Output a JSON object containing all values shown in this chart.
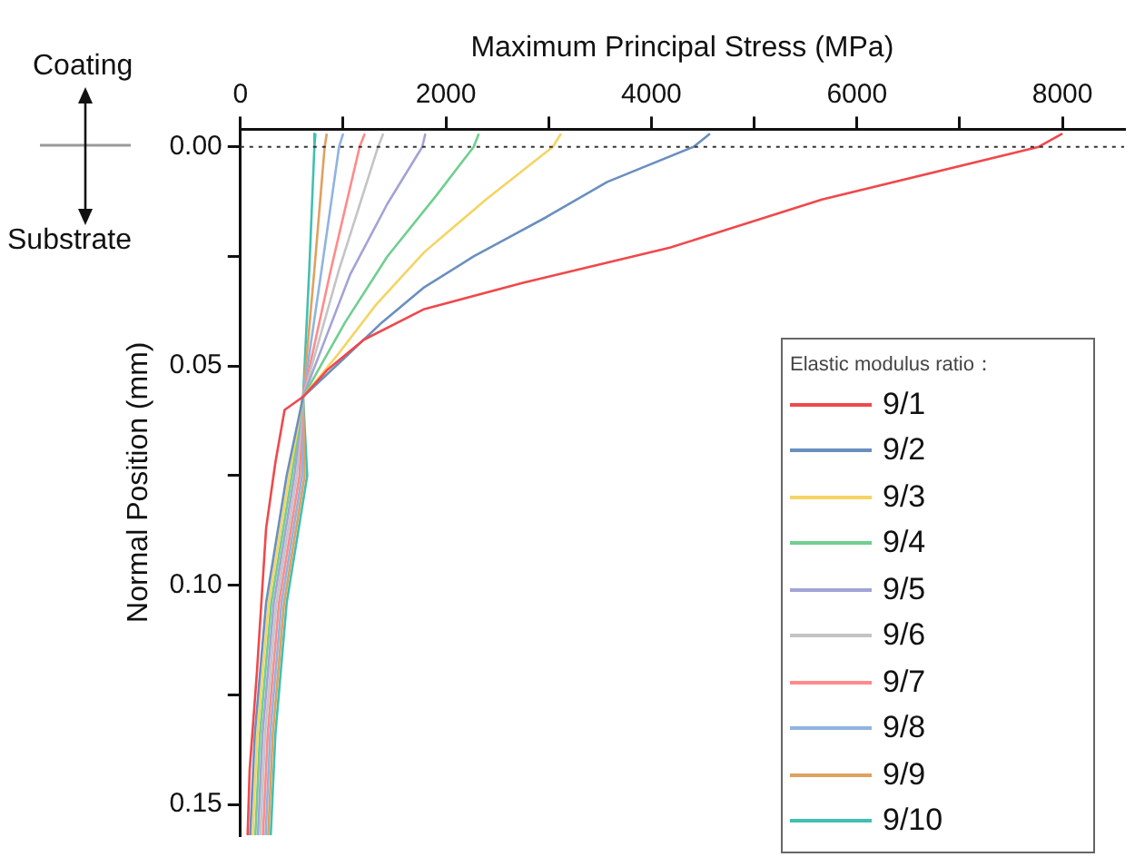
{
  "chart_data": {
    "type": "line",
    "xlabel": "Maximum Principal Stress (MPa)",
    "ylabel": "Normal Position (mm)",
    "legend_title": "Elastic modulus ratio：",
    "annotations": [
      "Coating",
      "Substrate"
    ],
    "xlim": [
      0,
      8600
    ],
    "xticks": [
      0,
      {
        "value": 1000,
        "label": null
      },
      2000,
      {
        "value": 3000,
        "label": null
      },
      4000,
      {
        "value": 5000,
        "label": null
      },
      6000,
      {
        "value": 7000,
        "label": null
      },
      8000
    ],
    "ylim": [
      0.157,
      -0.004
    ],
    "yticks": [
      {
        "value": 0,
        "label": "0.00"
      },
      {
        "value": 0.025,
        "label": null
      },
      {
        "value": 0.05,
        "label": "0.05"
      },
      {
        "value": 0.075,
        "label": null
      },
      {
        "value": 0.1,
        "label": "0.10"
      },
      {
        "value": 0.125,
        "label": null
      },
      {
        "value": 0.15,
        "label": "0.15"
      }
    ],
    "grid": false,
    "legend": "bottom right",
    "marker": "none",
    "line_style": "solid",
    "ref_lines": [
      {
        "axis": "y",
        "value": 0,
        "line_style": "dotted",
        "color": "#333333"
      }
    ],
    "series": [
      {
        "name": "9/1",
        "color": "#f0484b",
        "x": [
          8000,
          7770,
          5660,
          4180,
          2750,
          1790,
          1200,
          840,
          610,
          430,
          340,
          250,
          160,
          90,
          70
        ],
        "values": [
          -0.003,
          0,
          0.012,
          0.023,
          0.031,
          0.037,
          0.044,
          0.051,
          0.057,
          0.06,
          0.072,
          0.087,
          0.12,
          0.142,
          0.157
        ]
      },
      {
        "name": "9/2",
        "color": "#6a8fbf",
        "x": [
          4570,
          4410,
          3570,
          2980,
          2270,
          1790,
          1380,
          1020,
          610,
          450,
          250,
          140,
          95
        ],
        "values": [
          -0.003,
          0,
          0.008,
          0.016,
          0.025,
          0.032,
          0.04,
          0.048,
          0.057,
          0.075,
          0.104,
          0.134,
          0.157
        ]
      },
      {
        "name": "9/3",
        "color": "#f5d463",
        "x": [
          3120,
          3040,
          2390,
          1790,
          1320,
          960,
          610,
          475,
          275,
          165,
          120
        ],
        "values": [
          -0.003,
          0,
          0.012,
          0.024,
          0.036,
          0.047,
          0.057,
          0.075,
          0.104,
          0.134,
          0.157
        ]
      },
      {
        "name": "9/4",
        "color": "#6fcf8f",
        "x": [
          2320,
          2270,
          1910,
          1430,
          1020,
          610,
          500,
          300,
          190,
          145
        ],
        "values": [
          -0.003,
          0,
          0.011,
          0.025,
          0.04,
          0.057,
          0.075,
          0.104,
          0.134,
          0.157
        ]
      },
      {
        "name": "9/5",
        "color": "#a3a3d6",
        "x": [
          1800,
          1770,
          1430,
          1070,
          840,
          610,
          525,
          325,
          215,
          170
        ],
        "values": [
          -0.003,
          0,
          0.013,
          0.029,
          0.043,
          0.057,
          0.075,
          0.104,
          0.134,
          0.157
        ]
      },
      {
        "name": "9/6",
        "color": "#c4c4c4",
        "x": [
          1390,
          1340,
          960,
          610,
          550,
          350,
          240,
          195
        ],
        "values": [
          -0.003,
          0,
          0.028,
          0.057,
          0.075,
          0.104,
          0.134,
          0.157
        ]
      },
      {
        "name": "9/7",
        "color": "#ff8a8a",
        "x": [
          1210,
          1160,
          880,
          610,
          575,
          375,
          265,
          220
        ],
        "values": [
          -0.003,
          0,
          0.028,
          0.057,
          0.075,
          0.104,
          0.134,
          0.157
        ]
      },
      {
        "name": "9/8",
        "color": "#8fb4e0",
        "x": [
          1000,
          960,
          790,
          610,
          600,
          400,
          290,
          245
        ],
        "values": [
          -0.003,
          0,
          0.028,
          0.057,
          0.075,
          0.104,
          0.134,
          0.157
        ]
      },
      {
        "name": "9/9",
        "color": "#e0a060",
        "x": [
          840,
          820,
          720,
          610,
          625,
          425,
          315,
          270
        ],
        "values": [
          -0.003,
          0,
          0.028,
          0.057,
          0.075,
          0.104,
          0.134,
          0.157
        ]
      },
      {
        "name": "9/10",
        "color": "#40c0b0",
        "x": [
          730,
          720,
          670,
          610,
          650,
          450,
          340,
          295
        ],
        "values": [
          -0.003,
          0,
          0.028,
          0.057,
          0.075,
          0.104,
          0.134,
          0.157
        ]
      }
    ]
  }
}
